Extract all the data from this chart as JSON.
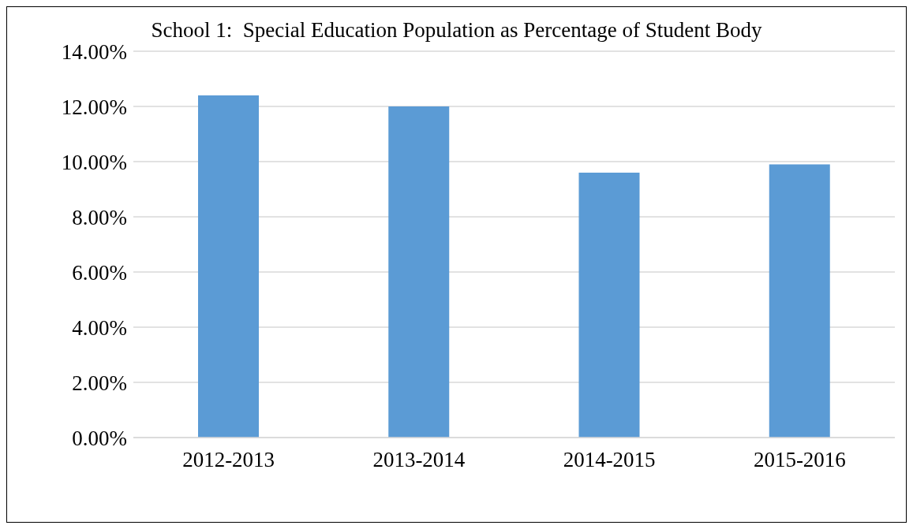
{
  "chart_data": {
    "type": "bar",
    "title": "School 1:  Special Education Population as Percentage of Student Body",
    "categories": [
      "2012-2013",
      "2013-2014",
      "2014-2015",
      "2015-2016"
    ],
    "values": [
      12.4,
      12.0,
      9.6,
      9.9
    ],
    "color": "#5b9bd5",
    "ylim": [
      0,
      14
    ],
    "yticks": [
      {
        "value": 0,
        "label": "0.00%"
      },
      {
        "value": 2,
        "label": "2.00%"
      },
      {
        "value": 4,
        "label": "4.00%"
      },
      {
        "value": 6,
        "label": "6.00%"
      },
      {
        "value": 8,
        "label": "8.00%"
      },
      {
        "value": 10,
        "label": "10.00%"
      },
      {
        "value": 12,
        "label": "12.00%"
      },
      {
        "value": 14,
        "label": "14.00%"
      }
    ],
    "grid": "y",
    "legend": false
  }
}
